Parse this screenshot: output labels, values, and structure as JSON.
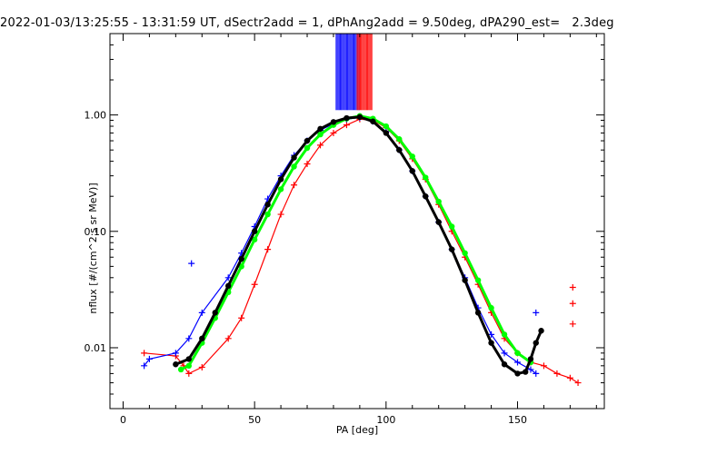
{
  "chart_data": {
    "type": "scatter",
    "title": "2022-01-03/13:25:55 - 13:31:59 UT, dSectr2add = 1, dPhAng2add = 9.50deg, dPA290_est=   2.3deg",
    "xlabel": "PA [deg]",
    "ylabel": "nflux [#/(cm^2 s sr MeV)]",
    "xlim": [
      -5,
      183
    ],
    "ylim": [
      0.003,
      5.0
    ],
    "yscale": "log",
    "xticks": [
      {
        "value": 0,
        "label": "0"
      },
      {
        "value": 50,
        "label": "50"
      },
      {
        "value": 100,
        "label": "100"
      },
      {
        "value": 150,
        "label": "150"
      }
    ],
    "yticks": [
      {
        "value": 0.01,
        "label": "0.01"
      },
      {
        "value": 0.1,
        "label": "0.10"
      },
      {
        "value": 1.0,
        "label": "1.00"
      }
    ],
    "grid": false,
    "series": [
      {
        "color": "#ff0000",
        "style": "lines-plus",
        "x": [
          8,
          20,
          23,
          25,
          30,
          40,
          45,
          50,
          55,
          60,
          65,
          70,
          75,
          80,
          85,
          90,
          95,
          100,
          105,
          110,
          115,
          120,
          125,
          130,
          135,
          140,
          145,
          150,
          155,
          160,
          165,
          170,
          173
        ],
        "y": [
          0.009,
          0.0085,
          0.007,
          0.006,
          0.0068,
          0.012,
          0.018,
          0.035,
          0.07,
          0.14,
          0.25,
          0.38,
          0.55,
          0.7,
          0.82,
          0.92,
          0.9,
          0.78,
          0.6,
          0.42,
          0.28,
          0.17,
          0.1,
          0.06,
          0.035,
          0.02,
          0.012,
          0.009,
          0.0075,
          0.007,
          0.006,
          0.0055,
          0.005
        ]
      },
      {
        "color": "#0000ff",
        "style": "lines-plus",
        "x": [
          8,
          10,
          20,
          25,
          30,
          40,
          45,
          50,
          55,
          60,
          65,
          70,
          75,
          80,
          85,
          90,
          95,
          100,
          105,
          110,
          115,
          120,
          125,
          130,
          135,
          140,
          145,
          150,
          155,
          157
        ],
        "y": [
          0.007,
          0.008,
          0.009,
          0.012,
          0.02,
          0.04,
          0.065,
          0.11,
          0.19,
          0.3,
          0.45,
          0.6,
          0.74,
          0.84,
          0.92,
          0.95,
          0.88,
          0.72,
          0.5,
          0.33,
          0.2,
          0.12,
          0.07,
          0.04,
          0.022,
          0.013,
          0.009,
          0.0075,
          0.0065,
          0.006
        ]
      },
      {
        "color": "#00ff00",
        "style": "dots-line",
        "x": [
          22,
          25,
          30,
          35,
          40,
          45,
          50,
          55,
          60,
          65,
          70,
          75,
          80,
          85,
          90,
          95,
          100,
          105,
          110,
          115,
          120,
          125,
          130,
          135,
          140,
          145,
          150,
          155
        ],
        "y": [
          0.0065,
          0.007,
          0.011,
          0.018,
          0.03,
          0.05,
          0.085,
          0.14,
          0.23,
          0.36,
          0.52,
          0.68,
          0.82,
          0.93,
          0.98,
          0.93,
          0.8,
          0.62,
          0.44,
          0.29,
          0.18,
          0.11,
          0.065,
          0.038,
          0.022,
          0.013,
          0.009,
          0.0075
        ]
      },
      {
        "color": "#000000",
        "style": "dots-line",
        "x": [
          20,
          25,
          30,
          35,
          40,
          45,
          50,
          55,
          60,
          65,
          70,
          75,
          80,
          85,
          90,
          95,
          100,
          105,
          110,
          115,
          120,
          125,
          130,
          135,
          140,
          145,
          150,
          153,
          155,
          157,
          159
        ],
        "y": [
          0.0072,
          0.008,
          0.012,
          0.02,
          0.034,
          0.058,
          0.1,
          0.17,
          0.28,
          0.43,
          0.6,
          0.76,
          0.87,
          0.94,
          0.96,
          0.88,
          0.7,
          0.5,
          0.33,
          0.2,
          0.12,
          0.07,
          0.038,
          0.02,
          0.011,
          0.0072,
          0.006,
          0.0062,
          0.008,
          0.011,
          0.014
        ]
      }
    ],
    "scatter_points": [
      {
        "color": "#ff0000",
        "x": 171,
        "y": 0.033
      },
      {
        "color": "#ff0000",
        "x": 171,
        "y": 0.024
      },
      {
        "color": "#ff0000",
        "x": 171,
        "y": 0.016
      },
      {
        "color": "#0000ff",
        "x": 26,
        "y": 0.053
      },
      {
        "color": "#0000ff",
        "x": 157,
        "y": 0.02
      }
    ],
    "beam_lines": [
      {
        "color": "#0000ff",
        "x_from": 81,
        "x_to": 90
      },
      {
        "color": "#ff0000",
        "x_from": 89,
        "x_to": 95
      }
    ]
  }
}
